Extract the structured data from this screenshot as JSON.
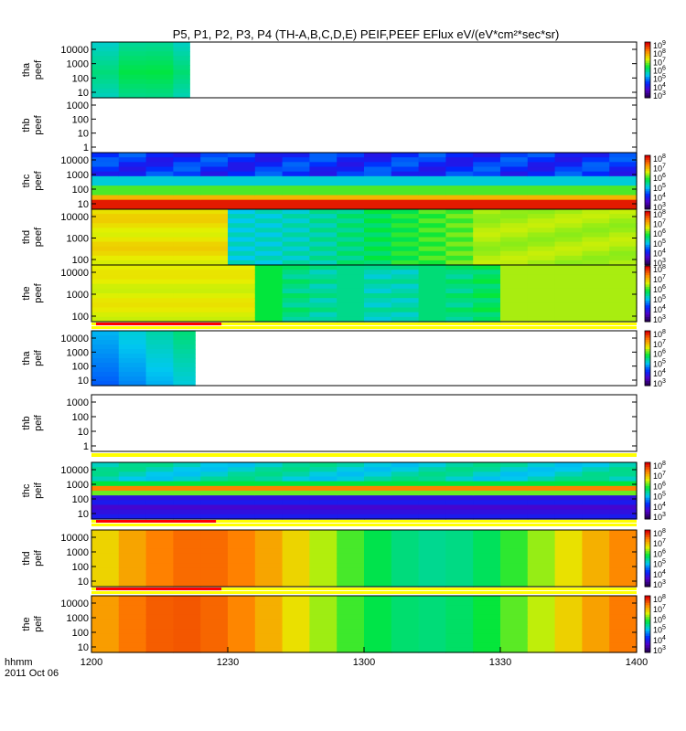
{
  "title": "P5, P1, P2, P3, P4 (TH-A,B,C,D,E) PEIF,PEEF EFlux eV/(eV*cm²*sec*sr)",
  "time_label": "hhmm",
  "date_label": "2011 Oct 06",
  "chart_data": {
    "type": "heatmap",
    "x_ticks": [
      "1200",
      "1230",
      "1300",
      "1330",
      "1400"
    ],
    "x_range": [
      "12:00",
      "14:00"
    ],
    "panels": [
      {
        "label": [
          "tha",
          "peef"
        ],
        "y_ticks": [
          "10000",
          "1000",
          "100",
          "10"
        ],
        "scale": "log",
        "colorbar": [
          "10^9",
          "10^8",
          "10^7",
          "10^6",
          "10^5",
          "10^4",
          "10^3"
        ],
        "data_end": "12:16"
      },
      {
        "label": [
          "thb",
          "peef"
        ],
        "y_ticks": [
          "1000",
          "100",
          "10",
          "1"
        ],
        "scale": "log",
        "colorbar": null,
        "data_end": null
      },
      {
        "label": [
          "thc",
          "peef"
        ],
        "y_ticks": [
          "10000",
          "1000",
          "100",
          "10"
        ],
        "scale": "log",
        "colorbar": [
          "10^8",
          "10^7",
          "10^6",
          "10^5",
          "10^4",
          "10^3"
        ],
        "data_end": "14:00"
      },
      {
        "label": [
          "thd",
          "peef"
        ],
        "y_ticks": [
          "10000",
          "1000",
          "100"
        ],
        "scale": "log",
        "colorbar": [
          "10^8",
          "10^7",
          "10^6",
          "10^5",
          "10^4",
          "10^3"
        ],
        "data_end": "14:00"
      },
      {
        "label": [
          "the",
          "peef"
        ],
        "y_ticks": [
          "10000",
          "1000",
          "100"
        ],
        "scale": "log",
        "colorbar": [
          "10^8",
          "10^7",
          "10^6",
          "10^5",
          "10^4",
          "10^3"
        ],
        "data_end": "14:00"
      },
      {
        "label": [
          "tha",
          "peif"
        ],
        "y_ticks": [
          "10000",
          "1000",
          "100",
          "10"
        ],
        "scale": "log",
        "colorbar": [
          "10^8",
          "10^7",
          "10^6",
          "10^5",
          "10^4",
          "10^3"
        ],
        "data_end": "12:17"
      },
      {
        "label": [
          "thb",
          "peif"
        ],
        "y_ticks": [
          "1000",
          "100",
          "10",
          "1"
        ],
        "scale": "log",
        "colorbar": null,
        "data_end": null
      },
      {
        "label": [
          "thc",
          "peif"
        ],
        "y_ticks": [
          "10000",
          "1000",
          "100",
          "10"
        ],
        "scale": "log",
        "colorbar": [
          "10^8",
          "10^7",
          "10^6",
          "10^5",
          "10^4",
          "10^3"
        ],
        "data_end": "14:00"
      },
      {
        "label": [
          "thd",
          "peif"
        ],
        "y_ticks": [
          "10000",
          "1000",
          "100",
          "10"
        ],
        "scale": "log",
        "colorbar": [
          "10^8",
          "10^7",
          "10^6",
          "10^5",
          "10^4",
          "10^3"
        ],
        "data_end": "14:00"
      },
      {
        "label": [
          "the",
          "peif"
        ],
        "y_ticks": [
          "10000",
          "1000",
          "100",
          "10"
        ],
        "scale": "log",
        "colorbar": [
          "10^8",
          "10^7",
          "10^6",
          "10^5",
          "10^4",
          "10^3"
        ],
        "data_end": "14:00"
      }
    ],
    "colors": {
      "low": "#5a00a0",
      "mid": "#00d8d0",
      "high": "#ff0000"
    }
  }
}
